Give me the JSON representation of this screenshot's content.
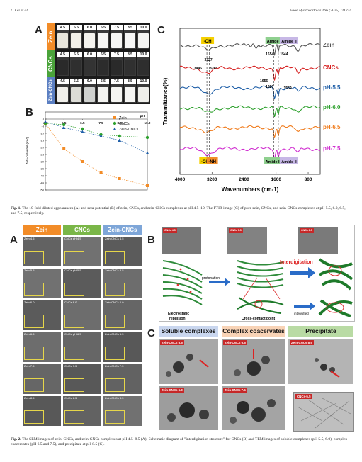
{
  "header": {
    "left": "L. Lei et al.",
    "right": "Food Hydrocolloids 166 (2025) 111274"
  },
  "fig1": {
    "panel_a": {
      "letter": "A",
      "rows": [
        "Zein",
        "CNCs",
        "Zein-CNCs"
      ],
      "ph": [
        "4.5",
        "5.5",
        "6.0",
        "6.5",
        "7.5",
        "8.5",
        "10.0"
      ]
    },
    "panel_b": {
      "letter": "B"
    },
    "panel_c": {
      "letter": "C",
      "labels": {
        "oh": "-OH",
        "amide1": "Amide I",
        "amide2": "Amide II",
        "nh": "-NH",
        "p3327": "3327",
        "p3446": "3446",
        "p3265": "3265",
        "p1654": "1654",
        "p1544": "1544",
        "p1656": "1656",
        "p1620": "1620",
        "p1559": "1559"
      }
    },
    "caption_label": "Fig. 1.",
    "caption_text": "The 10-fold diluted appearances (A) and zeta-potential (B) of zein, CNCs, and zein-CNCs complexes at pH 4.5–10. The FTIR image (C) of pure zein, CNCs, and zein-CNCs complexes at pH 5.5, 6.0, 6.5, and 7.5, respectively."
  },
  "chart_data": [
    {
      "type": "scatter",
      "title": "",
      "xlabel": "pH",
      "ylabel": "Zeta-potential (mV)",
      "xlim": [
        4.5,
        10.0
      ],
      "ylim": [
        -50,
        5
      ],
      "x_ticks": [
        "4.5",
        "5.5",
        "6.5",
        "7.5",
        "8.5",
        "10.0"
      ],
      "y_ticks": [
        "0",
        "-5",
        "-10",
        "-15",
        "-20",
        "-25",
        "-30",
        "-35",
        "-40",
        "-45",
        "-50"
      ],
      "legend": "top-right",
      "series": [
        {
          "name": "Zein",
          "color": "#f28c28",
          "x": [
            4.5,
            5.5,
            6.5,
            7.5,
            8.5,
            10.0
          ],
          "y": [
            -3,
            -21,
            -30,
            -38,
            -42,
            -47
          ]
        },
        {
          "name": "CNCs",
          "color": "#2ca02c",
          "x": [
            4.5,
            5.5,
            6.5,
            7.5,
            8.5,
            10.0
          ],
          "y": [
            -3,
            -4,
            -7,
            -11,
            -12,
            -13
          ]
        },
        {
          "name": "Zein-CNCs",
          "color": "#1f5fa8",
          "x": [
            4.5,
            5.5,
            6.5,
            7.5,
            8.5,
            10.0
          ],
          "y": [
            -2,
            -6,
            -9,
            -12,
            -15,
            -24
          ]
        }
      ]
    },
    {
      "type": "line",
      "title": "",
      "xlabel": "Wavenumbers (cm-1)",
      "ylabel": "Transmittance(%)",
      "xlim": [
        4000,
        500
      ],
      "x_ticks": [
        "4000",
        "3200",
        "2400",
        "1600",
        "800"
      ],
      "series": [
        {
          "name": "Zein",
          "color": "#555555"
        },
        {
          "name": "CNCs",
          "color": "#d62020"
        },
        {
          "name": "pH-5.5",
          "color": "#1f5fa8"
        },
        {
          "name": "pH-6.0",
          "color": "#2ca02c"
        },
        {
          "name": "pH-6.5",
          "color": "#f07a1a"
        },
        {
          "name": "pH-7.5",
          "color": "#d02fd0"
        }
      ]
    }
  ],
  "fig2": {
    "panel_a": {
      "letter": "A",
      "cols": [
        "Zein",
        "CNCs",
        "Zein-CNCs"
      ],
      "cells": [
        [
          "Zein 4.5",
          "CNCs pH 4.5",
          "Zein-CNCs 4.5"
        ],
        [
          "Zein 5.5",
          "CNCs pH 5.5",
          "Zein-CNCs 5.5"
        ],
        [
          "Zein 6.0",
          "CNCs 6.0",
          "Zein-CNCs 6.0"
        ],
        [
          "Zein 6.5",
          "CNCs pH 6.5",
          "Zein-CNCs 6.5"
        ],
        [
          "Zein 7.5",
          "CNCs 7.5",
          "Zein-CNCs 7.5"
        ],
        [
          "Zein 8.5",
          "CNCs 8.5",
          "Zein-CNCs 8.5"
        ]
      ]
    },
    "panel_b": {
      "letter": "B",
      "micro": [
        "CNCs 4.5",
        "CNCs 7.5",
        "CNCs 8.5"
      ],
      "protonation": "protonation",
      "interdigitation": "Interdigitation",
      "electrostatic": "Electrostatic",
      "repulsion": "repulsion",
      "cross_contact": "Cross-contact  point",
      "intensified": "intensified"
    },
    "panel_c": {
      "letter": "C",
      "titles": [
        "Soluble complexes",
        "Complex coacervates",
        "Precipitate"
      ],
      "tems": [
        "Zein-CNCs 5.5",
        "Zein-CNCs 6.5",
        "Zein-CNCs 8.5",
        "Zein-CNCs 6.0",
        "Zein-CNCs 7.5",
        "CNCs-5.5"
      ]
    },
    "caption_label": "Fig. 2.",
    "caption_text": "The SEM images of zein, CNCs, and zein-CNCs complexes at pH 4.5–8.5 (A); Schematic diagram of \"interdigitation structure\" for CNCs (B) and TEM images of soluble complexes (pH 5.5, 6.0), complex coacervates (pH 6.5 and 7.5), and precipitate at pH 8.5 (C)."
  }
}
